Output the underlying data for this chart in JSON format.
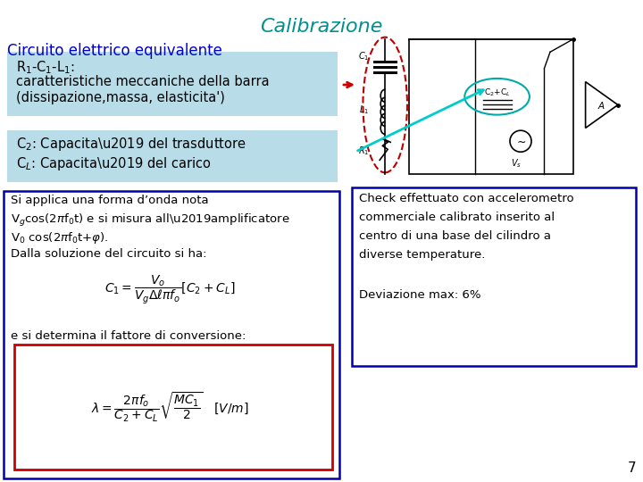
{
  "title": "Calibrazione",
  "title_color": "#009090",
  "title_fontsize": 16,
  "subtitle": "Circuito elettrico equivalente",
  "subtitle_color": "#0000CC",
  "subtitle_fontsize": 12,
  "box1_bg": "#B8DDE8",
  "box2_bg": "#B8DDE8",
  "box3_border": "#0000AA",
  "box4_border": "#0000AA",
  "red_box_border": "#CC0000",
  "page_number": "7",
  "background_color": "#FFFFFF"
}
